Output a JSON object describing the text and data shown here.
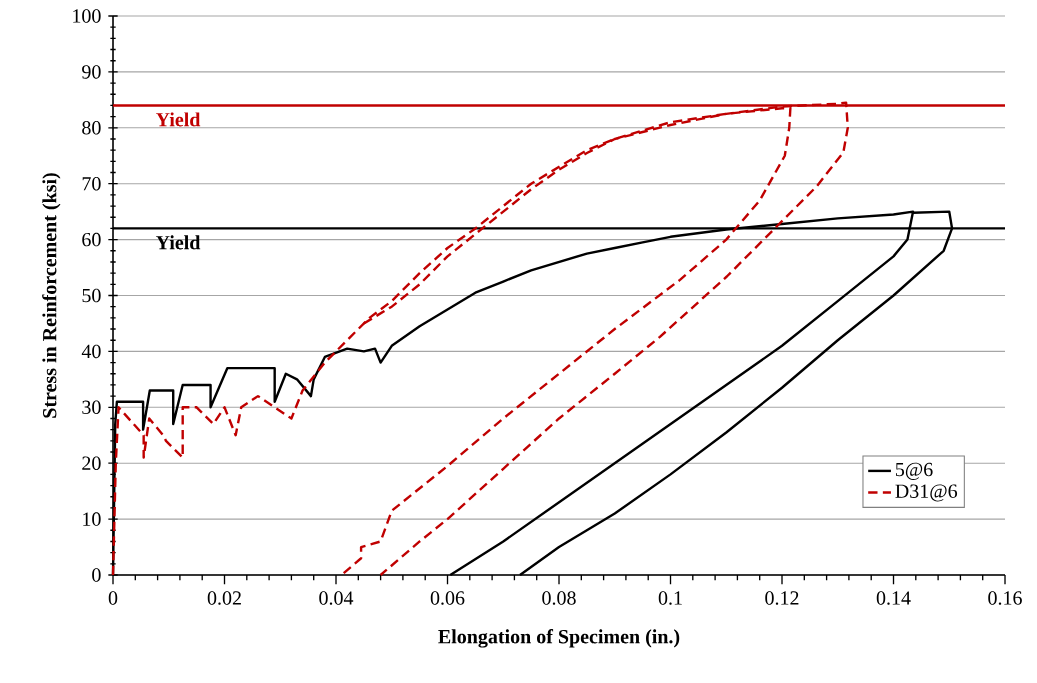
{
  "chart_data": {
    "type": "line",
    "xlabel": "Elongation of Specimen (in.)",
    "ylabel": "Stress in Reinforcement (ksi)",
    "xlim": [
      0,
      0.16
    ],
    "ylim": [
      0,
      100
    ],
    "xticks": [
      0,
      0.02,
      0.04,
      0.06,
      0.08,
      0.1,
      0.12,
      0.14,
      0.16
    ],
    "yticks": [
      0,
      10,
      20,
      30,
      40,
      50,
      60,
      70,
      80,
      90,
      100
    ],
    "grid": "y",
    "legend": "bottom right",
    "marker": "none",
    "ref_lines": [
      {
        "axis": "y",
        "value": 84,
        "label": "Yield",
        "color": "#c00000"
      },
      {
        "axis": "y",
        "value": 62,
        "label": "Yield",
        "color": "#000000"
      }
    ],
    "series": [
      {
        "name": "5@6",
        "color": "#000000",
        "line_style": "solid",
        "x": [
          0,
          0.0004,
          0.0007,
          0.0054,
          0.0054,
          0.0066,
          0.0108,
          0.0108,
          0.0125,
          0.0175,
          0.0175,
          0.0205,
          0.029,
          0.029,
          0.031,
          0.033,
          0.0355,
          0.036,
          0.038,
          0.042,
          0.045,
          0.047,
          0.048,
          0.05,
          0.055,
          0.06,
          0.065,
          0.07,
          0.075,
          0.085,
          0.09,
          0.095,
          0.1,
          0.11,
          0.12,
          0.13,
          0.14,
          0.1435,
          0.1425,
          0.14,
          0.13,
          0.12,
          0.07,
          0.0605
        ],
        "values": [
          0,
          27,
          31,
          31,
          26,
          33,
          33,
          27,
          34,
          34,
          30,
          37,
          37,
          31,
          36,
          35,
          32,
          35,
          39,
          40.5,
          40,
          40.5,
          38,
          41,
          44.5,
          47.5,
          50.5,
          52.5,
          54.5,
          57.5,
          58.5,
          59.5,
          60.5,
          61.8,
          62.8,
          63.8,
          64.5,
          65,
          60,
          57,
          49,
          41,
          6,
          0
        ]
      },
      {
        "name": "D31@6",
        "color": "#c00000",
        "line_style": "dashed",
        "x": [
          0,
          0.0005,
          0.001,
          0.0055,
          0.0055,
          0.0065,
          0.009,
          0.0095,
          0.0125,
          0.0125,
          0.015,
          0.018,
          0.02,
          0.022,
          0.023,
          0.026,
          0.032,
          0.034,
          0.038,
          0.042,
          0.046,
          0.05,
          0.055,
          0.06,
          0.065,
          0.075,
          0.085,
          0.09,
          0.095,
          0.1,
          0.11,
          0.12,
          0.1215,
          0.1213,
          0.1205,
          0.116,
          0.11,
          0.1017,
          0.09,
          0.08,
          0.07,
          0.06,
          0.05,
          0.048,
          0.0445,
          0.0445,
          0.041
        ],
        "values": [
          0,
          20,
          30,
          25,
          21,
          28,
          25,
          24,
          21,
          30,
          30,
          27,
          30,
          25,
          30,
          32,
          28,
          33,
          38,
          42,
          46,
          49,
          54,
          58.5,
          62,
          70,
          76,
          78,
          79.5,
          81,
          82.5,
          83.5,
          83.5,
          80,
          75,
          67,
          60,
          52.8,
          44,
          36,
          28,
          19.5,
          11.5,
          6,
          5,
          3,
          0
        ]
      },
      {
        "color": "#000000",
        "line_style": "solid",
        "x": [
          0.1435,
          0.15,
          0.1505,
          0.149,
          0.14,
          0.13,
          0.12,
          0.11,
          0.1,
          0.09,
          0.08,
          0.073
        ],
        "values": [
          64.8,
          65,
          62,
          58,
          50,
          42,
          33.5,
          25.5,
          18,
          11,
          5,
          0
        ]
      },
      {
        "color": "#c00000",
        "line_style": "dashed",
        "x": [
          0.045,
          0.05,
          0.055,
          0.06,
          0.065,
          0.075,
          0.08,
          0.085,
          0.09,
          0.1,
          0.11,
          0.12,
          0.13,
          0.1315,
          0.1318,
          0.131,
          0.1262,
          0.1184,
          0.1101,
          0.0981,
          0.09,
          0.08,
          0.07,
          0.06,
          0.055,
          0.048
        ],
        "values": [
          45,
          48,
          52,
          57,
          61,
          69,
          72.5,
          75.5,
          78,
          80.5,
          82.5,
          83.8,
          84.3,
          84.5,
          80,
          75.6,
          69.5,
          61.7,
          53.4,
          42.6,
          36,
          28,
          19,
          10,
          6,
          0
        ]
      }
    ]
  }
}
